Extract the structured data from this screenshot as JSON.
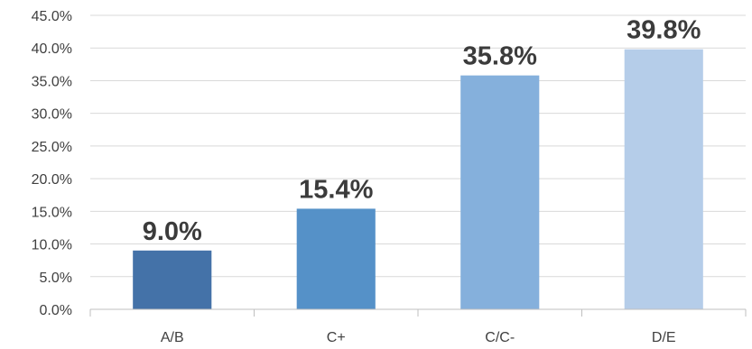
{
  "chart_data": {
    "type": "bar",
    "categories": [
      "A/B",
      "C+",
      "C/C-",
      "D/E"
    ],
    "values": [
      9.0,
      15.4,
      35.8,
      39.8
    ],
    "data_labels": [
      "9.0%",
      "15.4%",
      "35.8%",
      "39.8%"
    ],
    "colors": [
      "#4472a8",
      "#5591c8",
      "#85b0dc",
      "#b5cde9"
    ],
    "ylim": [
      0,
      45
    ],
    "yticks": [
      0,
      5,
      10,
      15,
      20,
      25,
      30,
      35,
      40,
      45
    ],
    "ytick_labels": [
      "0.0%",
      "5.0%",
      "10.0%",
      "15.0%",
      "20.0%",
      "25.0%",
      "30.0%",
      "35.0%",
      "40.0%",
      "45.0%"
    ],
    "grid": true,
    "legend": "none"
  }
}
